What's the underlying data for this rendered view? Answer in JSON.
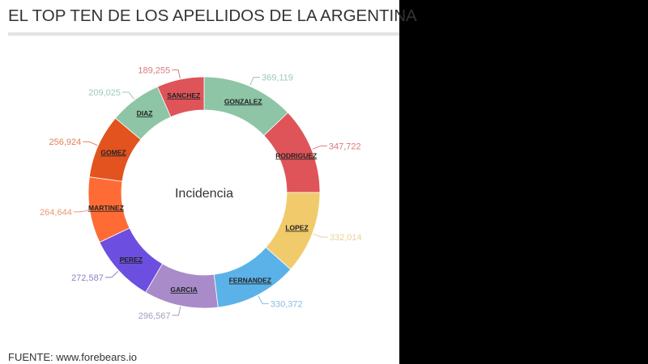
{
  "page": {
    "title": "EL TOP TEN DE LOS APELLIDOS DE LA ARGENTINA",
    "source": "FUENTE: www.forebears.io"
  },
  "chart_data": {
    "type": "pie",
    "subtype": "donut",
    "title": "EL TOP TEN DE LOS APELLIDOS DE LA ARGENTINA",
    "center_label": "Incidencia",
    "categories": [
      "GONZALEZ",
      "RODRIGUEZ",
      "LOPEZ",
      "FERNANDEZ",
      "GARCIA",
      "PEREZ",
      "MARTINEZ",
      "GOMEZ",
      "DIAZ",
      "SANCHEZ"
    ],
    "values": [
      369119,
      347722,
      332014,
      330372,
      296567,
      272587,
      264644,
      256924,
      209025,
      189255
    ],
    "value_labels": [
      "369,119",
      "347,722",
      "332,014",
      "330,372",
      "296,567",
      "272,587",
      "264,644",
      "256,924",
      "209,025",
      "189,255"
    ],
    "colors": [
      "#8dc5a6",
      "#de5459",
      "#f1cb6b",
      "#5bb2e8",
      "#a98bc9",
      "#6c4fe0",
      "#ff6b35",
      "#e2531f",
      "#8dc5a6",
      "#de5459"
    ],
    "label_colors": [
      "#9cc9b3",
      "#d9797c",
      "#ecd29a",
      "#86bfe0",
      "#a59cc0",
      "#8a84c4",
      "#ef9673",
      "#e1805a",
      "#9cc9b3",
      "#d9797c"
    ],
    "legend": "none",
    "source": "FUENTE: www.forebears.io"
  }
}
